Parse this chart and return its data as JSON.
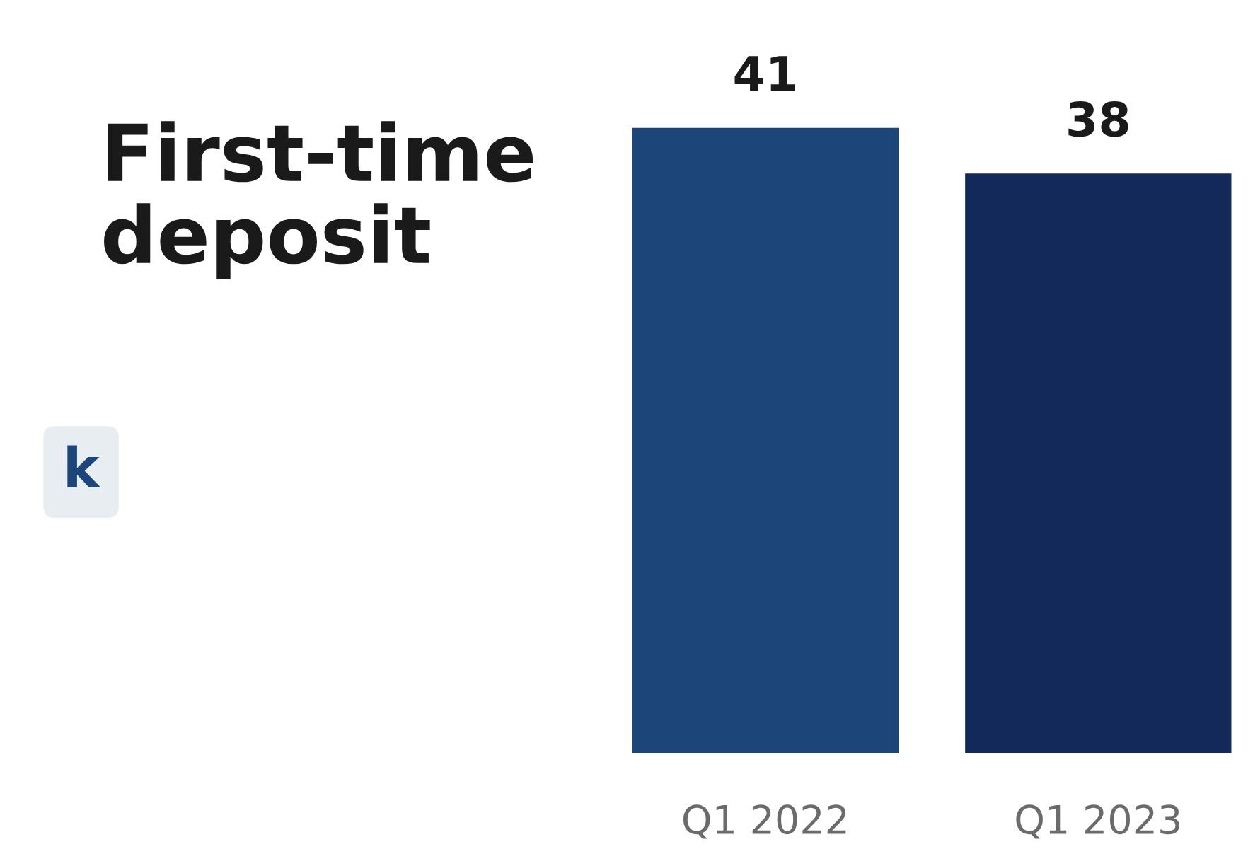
{
  "chart_data": {
    "type": "bar",
    "title": "First-time deposit",
    "annotations": [
      "k"
    ],
    "categories": [
      "Q1 2022",
      "Q1 2023"
    ],
    "values": [
      41,
      38
    ],
    "colors": [
      "#1c4679",
      "#13295a"
    ],
    "data_labels": true,
    "grid": false,
    "legend": false
  }
}
